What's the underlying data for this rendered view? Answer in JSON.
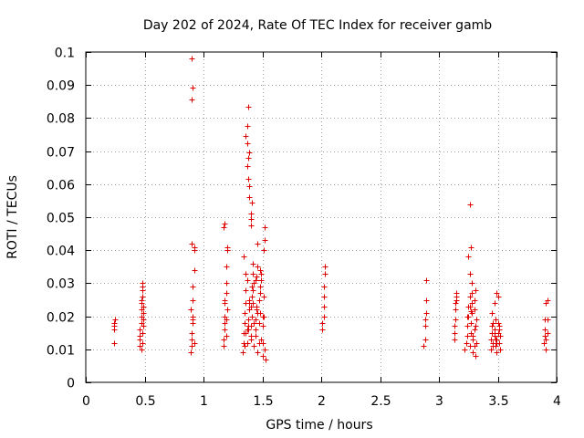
{
  "chart_data": {
    "type": "scatter",
    "title": "Day 202 of 2024, Rate Of TEC Index for receiver gamb",
    "xlabel": "GPS time / hours",
    "ylabel": "ROTI / TECUs",
    "xlim": [
      0,
      4
    ],
    "ylim": [
      0,
      0.1
    ],
    "x_ticks": [
      0,
      0.5,
      1,
      1.5,
      2,
      2.5,
      3,
      3.5,
      4
    ],
    "x_tick_labels": [
      "0",
      "0.5",
      "1",
      "1.5",
      "2",
      "2.5",
      "3",
      "3.5",
      "4"
    ],
    "y_ticks": [
      0,
      0.01,
      0.02,
      0.03,
      0.04,
      0.05,
      0.06,
      0.07,
      0.08,
      0.09,
      0.1
    ],
    "y_tick_labels": [
      "0",
      "0.01",
      "0.02",
      "0.03",
      "0.04",
      "0.05",
      "0.06",
      "0.07",
      "0.08",
      "0.09",
      "0.1"
    ],
    "grid": true,
    "marker": "+",
    "color": "#e00000",
    "series": [
      {
        "name": "gamb",
        "x": [
          0.24,
          0.24,
          0.24,
          0.24,
          0.25,
          0.46,
          0.46,
          0.46,
          0.47,
          0.47,
          0.47,
          0.47,
          0.48,
          0.48,
          0.48,
          0.48,
          0.48,
          0.49,
          0.49,
          0.49,
          0.47,
          0.48,
          0.46,
          0.49,
          0.47,
          0.89,
          0.9,
          0.9,
          0.9,
          0.91,
          0.91,
          0.91,
          0.91,
          0.92,
          0.92,
          0.92,
          0.9,
          0.91,
          0.89,
          0.92,
          0.9,
          0.91,
          0.9,
          1.17,
          1.17,
          1.18,
          1.18,
          1.18,
          1.18,
          1.19,
          1.19,
          1.19,
          1.2,
          1.2,
          1.17,
          1.18,
          1.19,
          1.2,
          1.18,
          1.19,
          1.33,
          1.34,
          1.34,
          1.35,
          1.35,
          1.36,
          1.36,
          1.37,
          1.37,
          1.38,
          1.38,
          1.39,
          1.39,
          1.4,
          1.4,
          1.41,
          1.41,
          1.42,
          1.42,
          1.43,
          1.43,
          1.44,
          1.44,
          1.45,
          1.45,
          1.46,
          1.46,
          1.47,
          1.47,
          1.48,
          1.48,
          1.49,
          1.49,
          1.5,
          1.5,
          1.51,
          1.51,
          1.52,
          1.52,
          1.53,
          1.36,
          1.38,
          1.4,
          1.42,
          1.44,
          1.46,
          1.48,
          1.5,
          1.35,
          1.37,
          1.39,
          1.41,
          1.43,
          1.45,
          1.47,
          1.49,
          1.51,
          1.34,
          1.36,
          1.38,
          1.4,
          1.42,
          1.44,
          1.46,
          1.48,
          1.5,
          1.52,
          1.37,
          1.37,
          1.38,
          1.38,
          1.39,
          1.39,
          1.4,
          1.4,
          1.37,
          1.38,
          1.39,
          1.36,
          1.41,
          1.4,
          2.01,
          2.01,
          2.02,
          2.02,
          2.02,
          2.02,
          2.03,
          2.03,
          2.87,
          2.88,
          2.88,
          2.88,
          2.89,
          2.89,
          2.89,
          3.13,
          3.13,
          3.13,
          3.14,
          3.14,
          3.14,
          3.15,
          3.15,
          3.15,
          3.22,
          3.23,
          3.24,
          3.24,
          3.25,
          3.25,
          3.26,
          3.26,
          3.27,
          3.27,
          3.28,
          3.28,
          3.29,
          3.29,
          3.3,
          3.3,
          3.31,
          3.31,
          3.32,
          3.32,
          3.26,
          3.28,
          3.3,
          3.25,
          3.27,
          3.29,
          3.31,
          3.24,
          3.26,
          3.28,
          3.3,
          3.26,
          3.27,
          3.44,
          3.44,
          3.45,
          3.45,
          3.46,
          3.46,
          3.47,
          3.47,
          3.48,
          3.48,
          3.49,
          3.49,
          3.5,
          3.5,
          3.51,
          3.51,
          3.52,
          3.52,
          3.45,
          3.47,
          3.49,
          3.51,
          3.46,
          3.48,
          3.5,
          3.47,
          3.49,
          3.89,
          3.9,
          3.9,
          3.9,
          3.91,
          3.91,
          3.91,
          3.92,
          3.92,
          3.92
        ],
        "y": [
          0.012,
          0.016,
          0.017,
          0.018,
          0.019,
          0.011,
          0.013,
          0.016,
          0.018,
          0.02,
          0.022,
          0.024,
          0.026,
          0.028,
          0.03,
          0.012,
          0.015,
          0.019,
          0.021,
          0.023,
          0.025,
          0.029,
          0.014,
          0.017,
          0.01,
          0.009,
          0.011,
          0.013,
          0.015,
          0.018,
          0.02,
          0.025,
          0.029,
          0.034,
          0.04,
          0.041,
          0.042,
          0.019,
          0.022,
          0.012,
          0.0855,
          0.0893,
          0.0982,
          0.011,
          0.013,
          0.016,
          0.018,
          0.02,
          0.025,
          0.027,
          0.03,
          0.035,
          0.04,
          0.041,
          0.047,
          0.048,
          0.014,
          0.022,
          0.024,
          0.019,
          0.009,
          0.012,
          0.015,
          0.018,
          0.021,
          0.024,
          0.028,
          0.031,
          0.012,
          0.016,
          0.019,
          0.022,
          0.025,
          0.013,
          0.017,
          0.02,
          0.026,
          0.033,
          0.036,
          0.03,
          0.011,
          0.014,
          0.019,
          0.023,
          0.032,
          0.035,
          0.009,
          0.012,
          0.018,
          0.021,
          0.027,
          0.031,
          0.033,
          0.008,
          0.017,
          0.02,
          0.04,
          0.043,
          0.047,
          0.007,
          0.015,
          0.019,
          0.023,
          0.028,
          0.016,
          0.021,
          0.029,
          0.02,
          0.011,
          0.016,
          0.024,
          0.029,
          0.018,
          0.022,
          0.025,
          0.013,
          0.026,
          0.038,
          0.033,
          0.017,
          0.014,
          0.024,
          0.031,
          0.042,
          0.034,
          0.012,
          0.01,
          0.0725,
          0.0655,
          0.068,
          0.0615,
          0.0595,
          0.056,
          0.051,
          0.0475,
          0.0775,
          0.0835,
          0.0695,
          0.0745,
          0.0545,
          0.0495,
          0.016,
          0.018,
          0.02,
          0.023,
          0.026,
          0.029,
          0.033,
          0.035,
          0.011,
          0.013,
          0.017,
          0.019,
          0.021,
          0.025,
          0.031,
          0.013,
          0.015,
          0.017,
          0.019,
          0.022,
          0.024,
          0.025,
          0.026,
          0.027,
          0.01,
          0.012,
          0.014,
          0.017,
          0.02,
          0.023,
          0.026,
          0.011,
          0.015,
          0.018,
          0.021,
          0.024,
          0.009,
          0.013,
          0.016,
          0.022,
          0.028,
          0.008,
          0.012,
          0.019,
          0.033,
          0.03,
          0.025,
          0.038,
          0.041,
          0.014,
          0.017,
          0.02,
          0.023,
          0.027,
          0.011,
          0.054,
          0.0215,
          0.01,
          0.013,
          0.015,
          0.017,
          0.012,
          0.018,
          0.014,
          0.016,
          0.011,
          0.019,
          0.013,
          0.009,
          0.015,
          0.026,
          0.012,
          0.017,
          0.014,
          0.01,
          0.021,
          0.024,
          0.027,
          0.016,
          0.011,
          0.013,
          0.018,
          0.015,
          0.012,
          0.012,
          0.014,
          0.016,
          0.019,
          0.01,
          0.013,
          0.024,
          0.025,
          0.015,
          0.019
        ]
      }
    ]
  }
}
